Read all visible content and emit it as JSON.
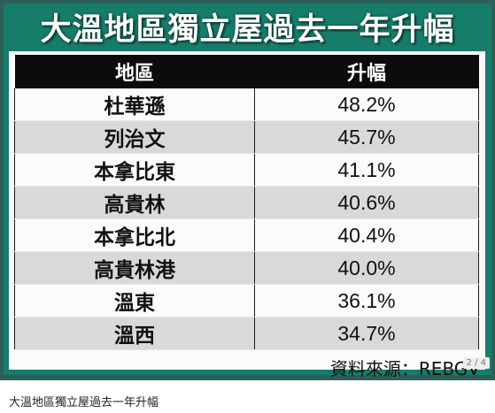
{
  "image": {
    "title": "大溫地區獨立屋過去一年升幅",
    "table": {
      "headers": [
        "地區",
        "升幅"
      ],
      "rows": [
        {
          "area": "杜華遜",
          "increase": "48.2%"
        },
        {
          "area": "列治文",
          "increase": "45.7%"
        },
        {
          "area": "本拿比東",
          "increase": "41.1%"
        },
        {
          "area": "高貴林",
          "increase": "40.6%"
        },
        {
          "area": "本拿比北",
          "increase": "40.4%"
        },
        {
          "area": "高貴林港",
          "increase": "40.0%"
        },
        {
          "area": "溫東",
          "increase": "36.1%"
        },
        {
          "area": "溫西",
          "increase": "34.7%"
        }
      ]
    },
    "source": "資料來源：REBGV"
  },
  "viewer": {
    "page_indicator": "2 / 4"
  },
  "caption": "大溫地區獨立屋過去一年升幅",
  "colors": {
    "frame": "#177d6b",
    "header_bg": "#0c0c0c",
    "row_alt": "#d9d9d9"
  }
}
